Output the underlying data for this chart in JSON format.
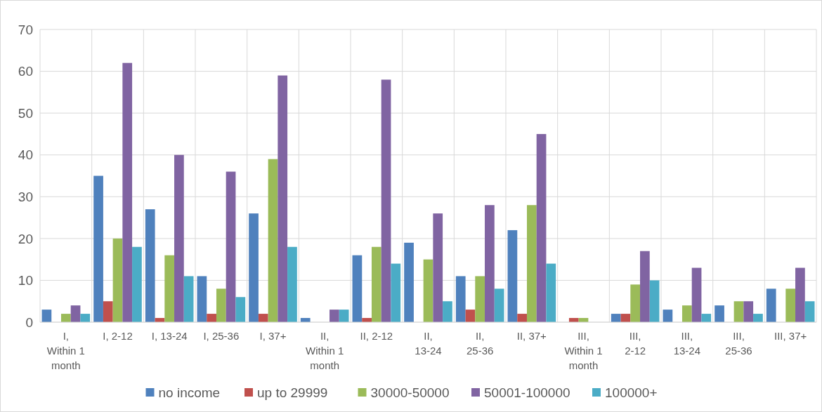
{
  "chart_data": {
    "type": "bar",
    "categories": [
      "I, Within 1 month",
      "I, 2-12",
      "I, 13-24",
      "I, 25-36",
      "I, 37+",
      "II, Within 1 month",
      "II, 2-12",
      "II, 13-24",
      "II, 25-36",
      "II, 37+",
      "III, Within 1 month",
      "III, 2-12",
      "III, 13-24",
      "III, 25-36",
      "III, 37+"
    ],
    "series": [
      {
        "name": "no income",
        "color": "#4f81bd",
        "values": [
          3,
          35,
          27,
          11,
          26,
          1,
          16,
          19,
          11,
          22,
          0,
          2,
          3,
          4,
          8
        ]
      },
      {
        "name": "up to 29999",
        "color": "#c0504d",
        "values": [
          0,
          5,
          1,
          2,
          2,
          0,
          1,
          0,
          3,
          2,
          1,
          2,
          0,
          0,
          0
        ]
      },
      {
        "name": "30000-50000",
        "color": "#9bbb59",
        "values": [
          2,
          20,
          16,
          8,
          39,
          0,
          18,
          15,
          11,
          28,
          1,
          9,
          4,
          5,
          8
        ]
      },
      {
        "name": "50001-100000",
        "color": "#8064a2",
        "values": [
          4,
          62,
          40,
          36,
          59,
          3,
          58,
          26,
          28,
          45,
          0,
          17,
          13,
          5,
          13
        ]
      },
      {
        "name": "100000+",
        "color": "#4bacc6",
        "values": [
          2,
          18,
          11,
          6,
          18,
          3,
          14,
          5,
          8,
          14,
          0,
          10,
          2,
          2,
          5
        ]
      }
    ],
    "ylim": [
      0,
      70
    ],
    "yticks": [
      0,
      10,
      20,
      30,
      40,
      50,
      60,
      70
    ],
    "grid": true,
    "legend": "bottom"
  }
}
